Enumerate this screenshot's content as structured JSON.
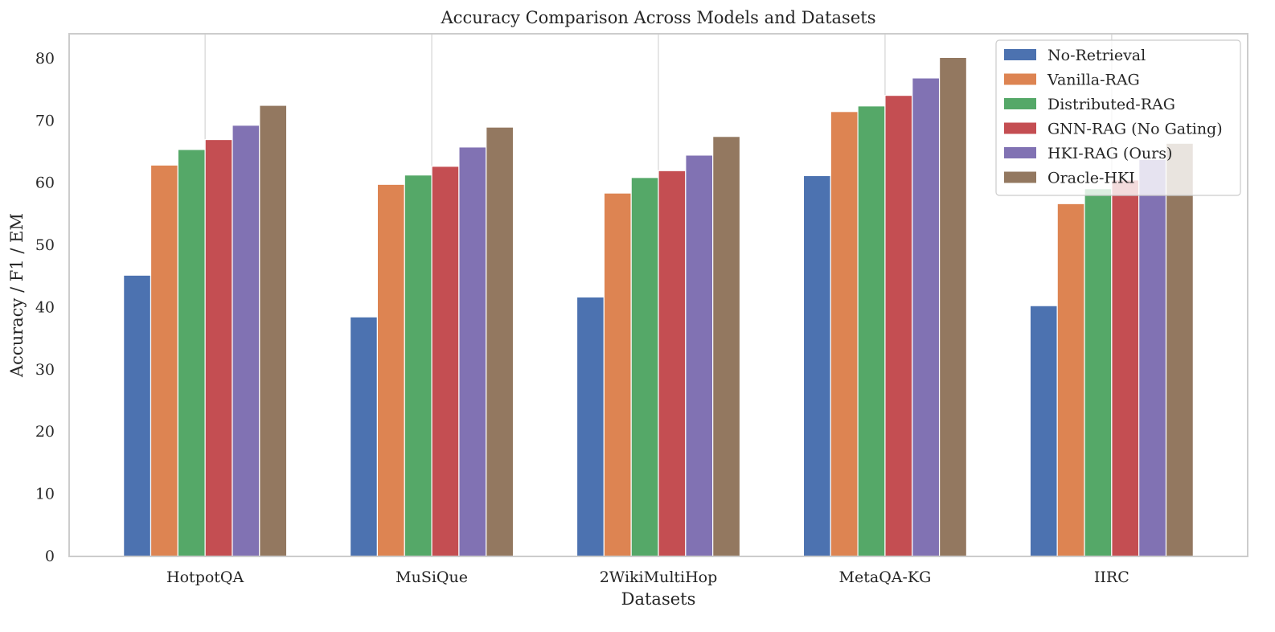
{
  "chart_data": {
    "type": "bar",
    "title": "Accuracy Comparison Across Models and Datasets",
    "xlabel": "Datasets",
    "ylabel": "Accuracy / F1 / EM",
    "categories": [
      "HotpotQA",
      "MuSiQue",
      "2WikiMultiHop",
      "MetaQA-KG",
      "IIRC"
    ],
    "ylim": [
      0,
      84
    ],
    "yticks": [
      0,
      10,
      20,
      30,
      40,
      50,
      60,
      70,
      80
    ],
    "grid": "vertical",
    "legend_position": "top-right",
    "series": [
      {
        "name": "No-Retrieval",
        "color": "#4c72b0",
        "values": [
          45.2,
          38.5,
          41.7,
          61.2,
          40.3
        ]
      },
      {
        "name": "Vanilla-RAG",
        "color": "#dd8452",
        "values": [
          62.9,
          59.8,
          58.4,
          71.5,
          56.7
        ]
      },
      {
        "name": "Distributed-RAG",
        "color": "#55a868",
        "values": [
          65.4,
          61.3,
          60.9,
          72.4,
          59.1
        ]
      },
      {
        "name": "GNN-RAG (No Gating)",
        "color": "#c44e52",
        "values": [
          67.0,
          62.7,
          62.0,
          74.1,
          60.5
        ]
      },
      {
        "name": "HKI-RAG (Ours)",
        "color": "#8172b3",
        "values": [
          69.3,
          65.8,
          64.5,
          76.9,
          63.8
        ]
      },
      {
        "name": "Oracle-HKI",
        "color": "#937860",
        "values": [
          72.5,
          69.0,
          67.5,
          80.2,
          66.4
        ]
      }
    ]
  }
}
